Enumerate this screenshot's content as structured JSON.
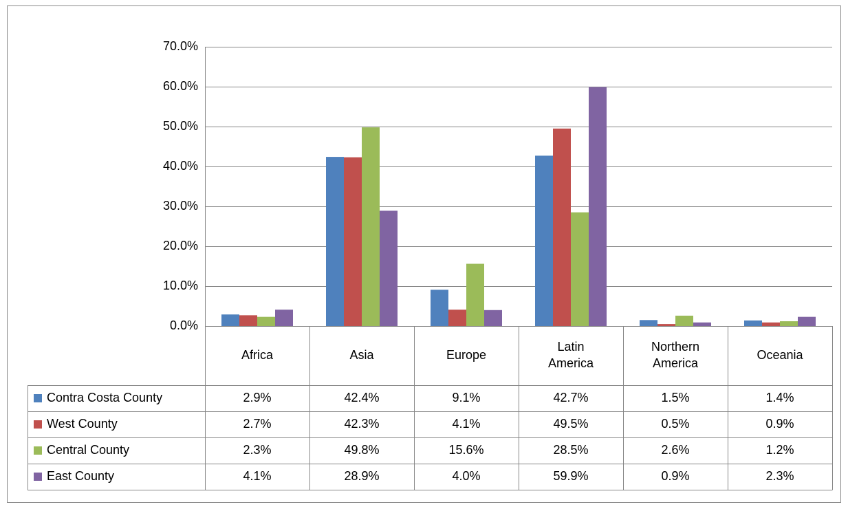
{
  "chart_data": {
    "type": "bar",
    "categories": [
      "Africa",
      "Asia",
      "Europe",
      "Latin America",
      "Northern America",
      "Oceania"
    ],
    "series": [
      {
        "name": "Contra Costa County",
        "color": "#4f81bd",
        "values": [
          2.9,
          42.4,
          9.1,
          42.7,
          1.5,
          1.4
        ],
        "value_labels": [
          "2.9%",
          "42.4%",
          "9.1%",
          "42.7%",
          "1.5%",
          "1.4%"
        ]
      },
      {
        "name": "West County",
        "color": "#c0504d",
        "values": [
          2.7,
          42.3,
          4.1,
          49.5,
          0.5,
          0.9
        ],
        "value_labels": [
          "2.7%",
          "42.3%",
          "4.1%",
          "49.5%",
          "0.5%",
          "0.9%"
        ]
      },
      {
        "name": "Central County",
        "color": "#9bbb59",
        "values": [
          2.3,
          49.8,
          15.6,
          28.5,
          2.6,
          1.2
        ],
        "value_labels": [
          "2.3%",
          "49.8%",
          "15.6%",
          "28.5%",
          "2.6%",
          "1.2%"
        ]
      },
      {
        "name": "East County",
        "color": "#8064a2",
        "values": [
          4.1,
          28.9,
          4.0,
          59.9,
          0.9,
          2.3
        ],
        "value_labels": [
          "4.1%",
          "28.9%",
          "4.0%",
          "59.9%",
          "0.9%",
          "2.3%"
        ]
      }
    ],
    "ylim": [
      0,
      70
    ],
    "yticks": [
      {
        "value": 0,
        "label": "0.0%"
      },
      {
        "value": 10,
        "label": "10.0%"
      },
      {
        "value": 20,
        "label": "20.0%"
      },
      {
        "value": 30,
        "label": "30.0%"
      },
      {
        "value": 40,
        "label": "40.0%"
      },
      {
        "value": 50,
        "label": "50.0%"
      },
      {
        "value": 60,
        "label": "60.0%"
      },
      {
        "value": 70,
        "label": "70.0%"
      }
    ],
    "grid": true,
    "legend": "table"
  }
}
